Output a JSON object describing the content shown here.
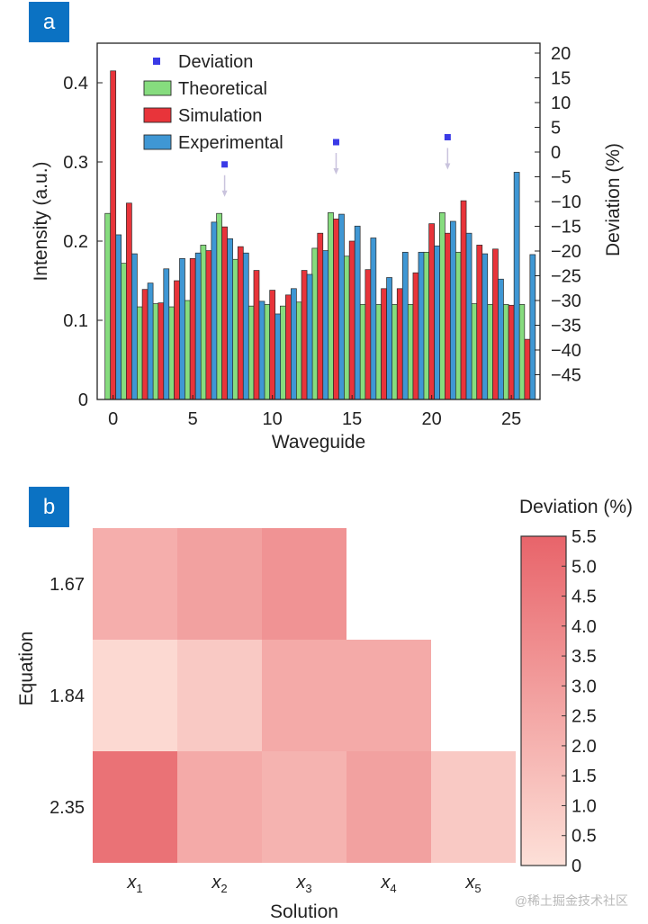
{
  "panels": {
    "a_label": "a",
    "b_label": "b"
  },
  "watermark": "@稀土掘金技术社区",
  "colors": {
    "theoretical": "#86dc7e",
    "simulation": "#e8343a",
    "experimental": "#3f97d4",
    "deviation": "#3a3ae6",
    "badge": "#0b72c3",
    "heat_low": "#fde0d8",
    "heat_high": "#e8646a"
  },
  "chart_data": [
    {
      "type": "bar",
      "title": "",
      "xlabel": "Waveguide",
      "ylabel": "Intensity (a.u.)",
      "y2label": "Deviation (%)",
      "ylim": [
        0,
        0.45
      ],
      "y2lim": [
        -50,
        22
      ],
      "xlim": [
        -1,
        26.8
      ],
      "x_ticks": [
        0,
        5,
        10,
        15,
        20,
        25
      ],
      "y_ticks": [
        0,
        0.1,
        0.2,
        0.3,
        0.4
      ],
      "y_tick_labels": [
        "0",
        "0.1",
        "0.2",
        "0.3",
        "0.4"
      ],
      "y2_ticks": [
        20,
        15,
        10,
        5,
        0,
        -5,
        -10,
        -15,
        -20,
        -25,
        -30,
        -35,
        -40,
        -45
      ],
      "y2_tick_labels": [
        "20",
        "15",
        "10",
        "5",
        "0",
        "−5",
        "−10",
        "−15",
        "−20",
        "−25",
        "−30",
        "−35",
        "−40",
        "−45"
      ],
      "legend": [
        "Deviation",
        "Theoretical",
        "Simulation",
        "Experimental"
      ],
      "legend_position": "top-left",
      "categories": [
        0,
        1,
        2,
        3,
        4,
        5,
        6,
        7,
        8,
        9,
        10,
        11,
        12,
        13,
        14,
        15,
        16,
        17,
        18,
        19,
        20,
        21,
        22,
        23,
        24,
        25,
        26
      ],
      "series": [
        {
          "name": "Theoretical",
          "values": [
            0.235,
            0.172,
            0.117,
            0.121,
            0.117,
            0.125,
            0.195,
            0.235,
            0.177,
            0.118,
            0.12,
            0.118,
            0.123,
            0.191,
            0.236,
            0.181,
            0.12,
            0.12,
            0.12,
            0.12,
            0.186,
            0.236,
            0.186,
            0.121,
            0.12,
            0.12,
            0.12
          ]
        },
        {
          "name": "Simulation",
          "values": [
            0.415,
            0.248,
            0.139,
            0.122,
            0.15,
            0.178,
            0.188,
            0.218,
            0.193,
            0.163,
            0.138,
            0.132,
            0.163,
            0.21,
            0.228,
            0.2,
            0.164,
            0.14,
            0.14,
            0.16,
            0.222,
            0.21,
            0.251,
            0.195,
            0.19,
            0.119,
            0.076
          ]
        },
        {
          "name": "Experimental",
          "values": [
            0.208,
            0.184,
            0.147,
            0.165,
            0.178,
            0.185,
            0.224,
            0.203,
            0.185,
            0.124,
            0.108,
            0.14,
            0.158,
            0.188,
            0.234,
            0.219,
            0.204,
            0.154,
            0.186,
            0.186,
            0.194,
            0.225,
            0.21,
            0.184,
            0.152,
            0.287,
            0.183
          ]
        }
      ],
      "deviation_points": [
        {
          "x": 7,
          "y": -2.5
        },
        {
          "x": 14,
          "y": 2
        },
        {
          "x": 21,
          "y": 3
        }
      ]
    },
    {
      "type": "heatmap",
      "title": "",
      "xlabel": "Solution",
      "ylabel": "Equation",
      "colorbar_label": "Deviation (%)",
      "colorbar_range": [
        0,
        5.5
      ],
      "colorbar_ticks": [
        "5.5",
        "5.0",
        "4.5",
        "4.0",
        "3.5",
        "3.0",
        "2.5",
        "2.0",
        "1.5",
        "1.0",
        "0.5",
        "0"
      ],
      "x_categories": [
        {
          "base": "x",
          "sub": "1"
        },
        {
          "base": "x",
          "sub": "2"
        },
        {
          "base": "x",
          "sub": "3"
        },
        {
          "base": "x",
          "sub": "4"
        },
        {
          "base": "x",
          "sub": "5"
        }
      ],
      "y_categories": [
        "1.67",
        "1.84",
        "2.35"
      ],
      "values": [
        [
          2.2,
          2.8,
          3.4,
          null,
          null
        ],
        [
          0.3,
          1.0,
          2.4,
          2.4,
          null
        ],
        [
          4.9,
          2.4,
          2.0,
          2.8,
          1.0
        ]
      ]
    }
  ]
}
